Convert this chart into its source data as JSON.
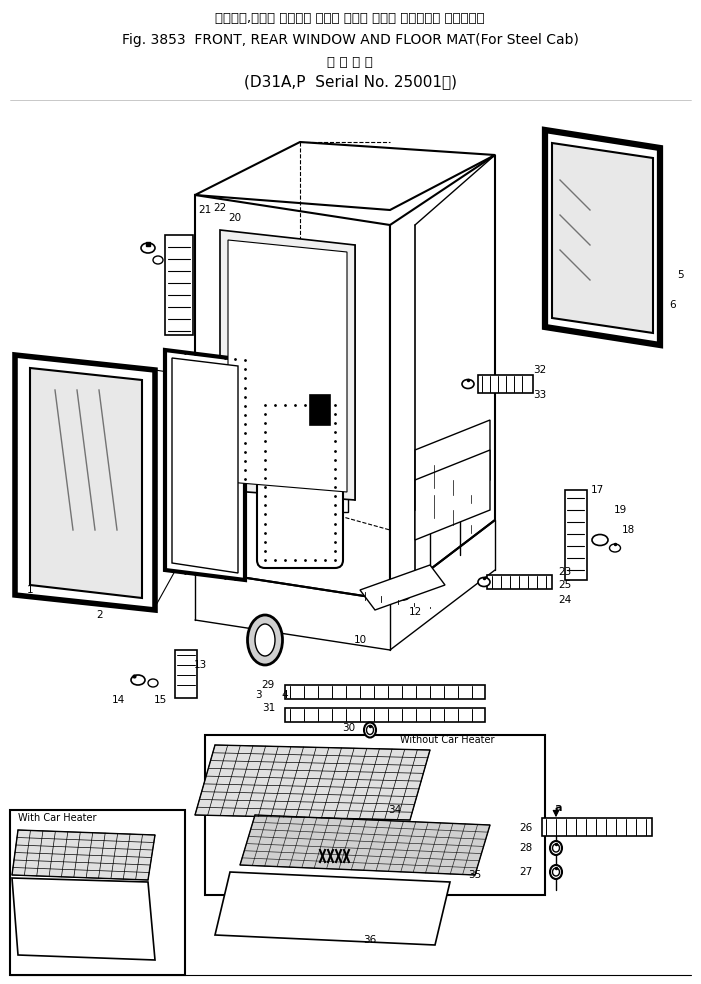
{
  "title_line1": "フロント,リヤー ウインド および フロア マット （スチール キャブ用）",
  "title_line2": "Fig. 3853  FRONT, REAR WINDOW AND FLOOR MAT(For Steel Cab)",
  "subtitle1": "適 用 号 機",
  "subtitle2": "(D31A,P  Serial No. 25001～)",
  "bg": "#ffffff",
  "fg": "#000000",
  "fig_w": 7.01,
  "fig_h": 9.84,
  "dpi": 100,
  "label_without": "Without Car Heater",
  "label_with": "With Car Heater"
}
